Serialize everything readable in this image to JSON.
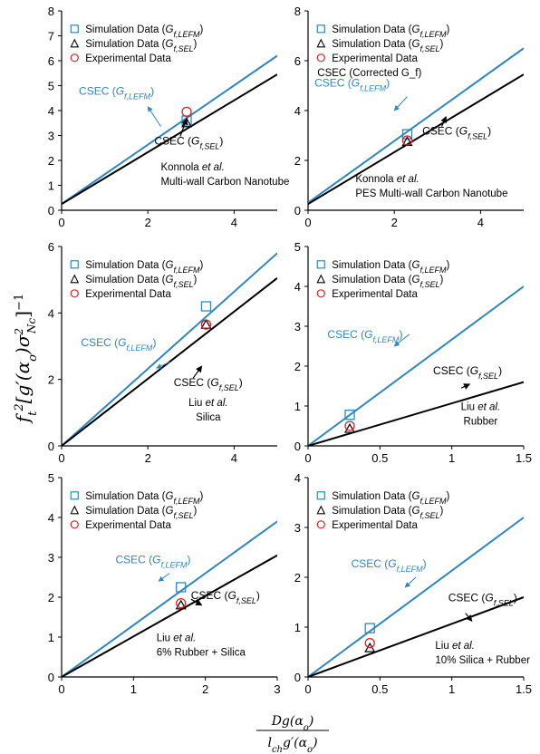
{
  "figure": {
    "ylabel": "f_t^2[g'(α_o)σ_Nc^2]^-1",
    "xlabel_numerator": "Dg(α_o)",
    "xlabel_denominator": "l_ch g'(α_o)"
  },
  "colors": {
    "lefm": "#2E86C1",
    "sel": "#000000",
    "sim_marker": "#2E86C1",
    "exp_marker": "#E02020"
  },
  "chart_data": [
    {
      "type": "line",
      "xlim": [
        0,
        5
      ],
      "ylim": [
        0,
        8
      ],
      "xticks": [
        0,
        2,
        4
      ],
      "yticks": [
        0,
        1,
        2,
        3,
        4,
        5,
        6,
        7,
        8
      ],
      "grid": false,
      "legend": [
        "Simulation Data (G_f,LEFM)",
        "Simulation Data (G_f,SEL)",
        "Experimental Data"
      ],
      "lines": [
        {
          "name": "CSEC (G_f,LEFM)",
          "x": [
            0,
            5
          ],
          "y": [
            0.25,
            6.2
          ]
        },
        {
          "name": "CSEC (G_f,SEL)",
          "x": [
            0,
            5
          ],
          "y": [
            0.25,
            5.45
          ]
        }
      ],
      "sim_lefm": [
        [
          2.9,
          3.6
        ]
      ],
      "sim_sel": [
        [
          2.9,
          3.5
        ]
      ],
      "experimental": [
        [
          2.9,
          3.95
        ]
      ],
      "annotations": [
        "Konnola et al.",
        "Multi-wall Carbon Nanotube"
      ]
    },
    {
      "type": "line",
      "xlim": [
        0,
        5
      ],
      "ylim": [
        0,
        8
      ],
      "xticks": [
        0,
        2,
        4
      ],
      "yticks": [
        0,
        2,
        4,
        6,
        8
      ],
      "grid": false,
      "legend": [
        "Simulation Data (G_f,LEFM)",
        "Simulation Data (G_f,SEL)",
        "Experimental Data",
        "CSEC (Corrected G_f)"
      ],
      "lines": [
        {
          "name": "CSEC (G_f,LEFM)",
          "x": [
            0,
            5
          ],
          "y": [
            0.3,
            6.5
          ]
        },
        {
          "name": "CSEC (G_f,SEL)",
          "x": [
            0,
            5
          ],
          "y": [
            0.25,
            5.45
          ]
        }
      ],
      "sim_lefm": [
        [
          2.3,
          3.05
        ]
      ],
      "sim_sel": [
        [
          2.3,
          2.75
        ]
      ],
      "experimental": [
        [
          2.3,
          2.8
        ]
      ],
      "annotations": [
        "Konnola et al.",
        "PES Multi-wall Carbon Nanotube"
      ]
    },
    {
      "type": "line",
      "xlim": [
        0,
        5
      ],
      "ylim": [
        0,
        6
      ],
      "xticks": [
        0,
        2,
        4
      ],
      "yticks": [
        0,
        2,
        4,
        6
      ],
      "grid": false,
      "legend": [
        "Simulation Data (G_f,LEFM)",
        "Simulation Data (G_f,SEL)",
        "Experimental Data"
      ],
      "lines": [
        {
          "name": "CSEC (G_f,LEFM)",
          "x": [
            0,
            5
          ],
          "y": [
            0,
            5.8
          ]
        },
        {
          "name": "CSEC (G_f,SEL)",
          "x": [
            0,
            5
          ],
          "y": [
            0,
            5.05
          ]
        }
      ],
      "sim_lefm": [
        [
          3.35,
          4.2
        ]
      ],
      "sim_sel": [
        [
          3.35,
          3.65
        ]
      ],
      "experimental": [
        [
          3.35,
          3.65
        ]
      ],
      "annotations": [
        "Liu et al.",
        "Silica"
      ]
    },
    {
      "type": "line",
      "xlim": [
        0,
        1.5
      ],
      "ylim": [
        0,
        5
      ],
      "xticks": [
        0,
        0.5,
        1,
        1.5
      ],
      "yticks": [
        0,
        1,
        2,
        3,
        4,
        5
      ],
      "grid": false,
      "legend": [
        "Simulation Data (G_f,LEFM)",
        "Simulation Data (G_f,SEL)",
        "Experimental Data"
      ],
      "lines": [
        {
          "name": "CSEC (G_f,LEFM)",
          "x": [
            0,
            1.5
          ],
          "y": [
            0,
            4.0
          ]
        },
        {
          "name": "CSEC (G_f,SEL)",
          "x": [
            0,
            1.5
          ],
          "y": [
            0,
            1.6
          ]
        }
      ],
      "sim_lefm": [
        [
          0.29,
          0.78
        ]
      ],
      "sim_sel": [
        [
          0.29,
          0.43
        ]
      ],
      "experimental": [
        [
          0.29,
          0.5
        ]
      ],
      "annotations": [
        "Liu et al.",
        "Rubber"
      ]
    },
    {
      "type": "line",
      "xlim": [
        0,
        3
      ],
      "ylim": [
        0,
        5
      ],
      "xticks": [
        0,
        1,
        2,
        3
      ],
      "yticks": [
        0,
        1,
        2,
        3,
        4,
        5
      ],
      "grid": false,
      "legend": [
        "Simulation Data (G_f,LEFM)",
        "Simulation Data (G_f,SEL)",
        "Experimental Data"
      ],
      "lines": [
        {
          "name": "CSEC (G_f,LEFM)",
          "x": [
            0,
            3
          ],
          "y": [
            0,
            3.9
          ]
        },
        {
          "name": "CSEC (G_f,SEL)",
          "x": [
            0,
            3
          ],
          "y": [
            0,
            3.05
          ]
        }
      ],
      "sim_lefm": [
        [
          1.66,
          2.25
        ]
      ],
      "sim_sel": [
        [
          1.66,
          1.8
        ]
      ],
      "experimental": [
        [
          1.66,
          1.85
        ]
      ],
      "annotations": [
        "Liu et al.",
        "6% Rubber + Silica"
      ]
    },
    {
      "type": "line",
      "xlim": [
        0,
        1.5
      ],
      "ylim": [
        0,
        4
      ],
      "xticks": [
        0,
        0.5,
        1,
        1.5
      ],
      "yticks": [
        0,
        1,
        2,
        3,
        4
      ],
      "grid": false,
      "legend": [
        "Simulation Data (G_f,LEFM)",
        "Simulation Data (G_f,SEL)",
        "Experimental Data"
      ],
      "lines": [
        {
          "name": "CSEC (G_f,LEFM)",
          "x": [
            0,
            1.5
          ],
          "y": [
            0,
            3.2
          ]
        },
        {
          "name": "CSEC (G_f,SEL)",
          "x": [
            0,
            1.5
          ],
          "y": [
            0,
            1.6
          ]
        }
      ],
      "sim_lefm": [
        [
          0.43,
          0.98
        ]
      ],
      "sim_sel": [
        [
          0.43,
          0.58
        ]
      ],
      "experimental": [
        [
          0.43,
          0.68
        ]
      ],
      "annotations": [
        "Liu et al.",
        "10% Silica + Rubber"
      ]
    }
  ]
}
